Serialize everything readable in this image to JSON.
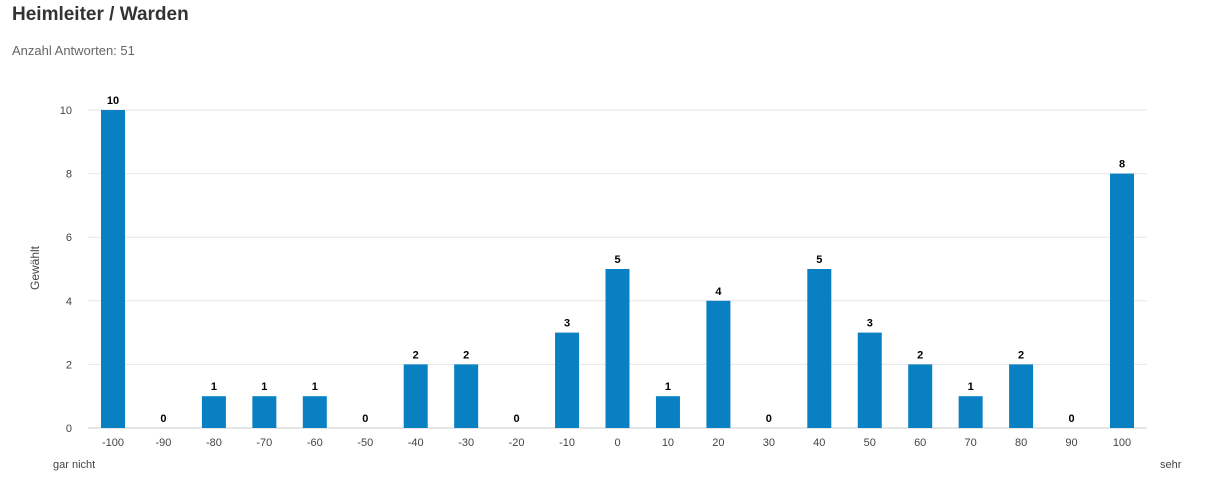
{
  "title": "Heimleiter / Warden",
  "subtitle": "Anzahl Antworten: 51",
  "chart_data": {
    "type": "bar",
    "categories": [
      "-100",
      "-90",
      "-80",
      "-70",
      "-60",
      "-50",
      "-40",
      "-30",
      "-20",
      "-10",
      "0",
      "10",
      "20",
      "30",
      "40",
      "50",
      "60",
      "70",
      "80",
      "90",
      "100"
    ],
    "values": [
      10,
      0,
      1,
      1,
      1,
      0,
      2,
      2,
      0,
      3,
      5,
      1,
      4,
      0,
      5,
      3,
      2,
      1,
      2,
      0,
      8
    ],
    "ylabel": "Gewählt",
    "ylim": [
      0,
      10
    ],
    "yticks": [
      0,
      2,
      4,
      6,
      8,
      10
    ],
    "scale_left_label": "gar nicht",
    "scale_right_label": "sehr",
    "bar_color": "#0880c2",
    "grid": true,
    "data_labels": true
  }
}
